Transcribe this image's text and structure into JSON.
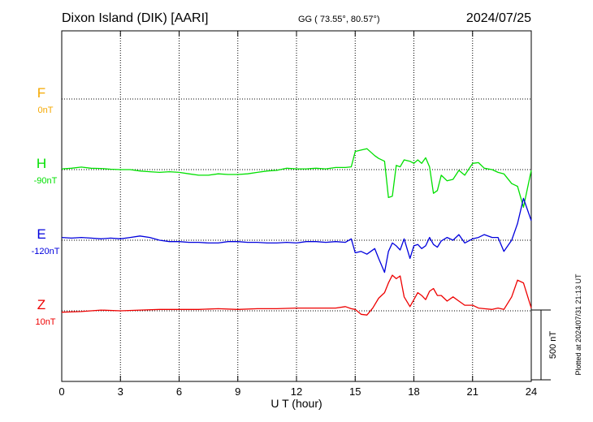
{
  "header": {
    "station": "Dixon Island (DIK)  [AARI]",
    "coords": "GG ( 73.55°,  80.57°)",
    "date": "2024/07/25"
  },
  "side_note": "Plotted at 2024/07/31 21:13 UT",
  "chart_data": {
    "type": "line",
    "xlabel": "U T (hour)",
    "xlim": [
      0,
      24
    ],
    "xticks": [
      0,
      3,
      6,
      9,
      12,
      15,
      18,
      21,
      24
    ],
    "xticklabels": [
      "0",
      "3",
      "6",
      "9",
      "12",
      "15",
      "18",
      "21",
      "24"
    ],
    "scale_bar": {
      "value": 500,
      "label": "500 nT"
    },
    "series": [
      {
        "name": "F",
        "baseline_label": "0nT",
        "color": "#f5a800",
        "x": [],
        "y": []
      },
      {
        "name": "H",
        "baseline_label": "-90nT",
        "color": "#00e000",
        "x": [
          0,
          0.5,
          1,
          1.5,
          2,
          2.5,
          3,
          3.5,
          4,
          4.5,
          5,
          5.5,
          6,
          6.5,
          7,
          7.5,
          8,
          8.5,
          9,
          9.5,
          10,
          10.5,
          11,
          11.5,
          12,
          12.5,
          13,
          13.5,
          14,
          14.5,
          14.8,
          15,
          15.3,
          15.6,
          16,
          16.2,
          16.5,
          16.7,
          16.9,
          17.1,
          17.3,
          17.5,
          17.8,
          18.0,
          18.2,
          18.4,
          18.6,
          18.8,
          19.0,
          19.2,
          19.4,
          19.7,
          20.0,
          20.3,
          20.6,
          21.0,
          21.3,
          21.6,
          22.0,
          22.3,
          22.6,
          23.0,
          23.3,
          23.6,
          24.0
        ],
        "y": [
          5,
          10,
          18,
          10,
          8,
          3,
          0,
          0,
          -10,
          -15,
          -20,
          -15,
          -20,
          -30,
          -40,
          -40,
          -30,
          -35,
          -35,
          -30,
          -20,
          -10,
          -5,
          10,
          5,
          5,
          10,
          5,
          15,
          15,
          20,
          130,
          140,
          150,
          100,
          80,
          60,
          -200,
          -190,
          30,
          20,
          70,
          60,
          45,
          70,
          45,
          85,
          20,
          -170,
          -150,
          -40,
          -80,
          -70,
          -5,
          -40,
          45,
          50,
          10,
          0,
          -20,
          -30,
          -100,
          -120,
          -270,
          -5
        ]
      },
      {
        "name": "E",
        "baseline_label": "-120nT",
        "color": "#0000dd",
        "x": [
          0,
          0.5,
          1,
          1.5,
          2,
          2.5,
          3,
          3.5,
          4,
          4.5,
          5,
          5.5,
          6,
          6.5,
          7,
          7.5,
          8,
          8.5,
          9,
          9.5,
          10,
          10.5,
          11,
          11.5,
          12,
          12.5,
          13,
          13.5,
          14,
          14.5,
          14.8,
          15,
          15.3,
          15.6,
          16,
          16.2,
          16.5,
          16.7,
          16.9,
          17.1,
          17.3,
          17.5,
          17.8,
          18.0,
          18.2,
          18.4,
          18.6,
          18.8,
          19.0,
          19.2,
          19.4,
          19.7,
          20.0,
          20.3,
          20.6,
          21.0,
          21.3,
          21.6,
          22.0,
          22.3,
          22.6,
          23.0,
          23.3,
          23.6,
          24.0
        ],
        "y": [
          20,
          15,
          20,
          15,
          10,
          15,
          10,
          20,
          30,
          20,
          0,
          -10,
          -10,
          -15,
          -15,
          -20,
          -20,
          -10,
          -10,
          -15,
          -15,
          -20,
          -20,
          -15,
          -20,
          -10,
          -10,
          -15,
          -10,
          -15,
          10,
          -90,
          -80,
          -100,
          -60,
          -130,
          -230,
          -80,
          -20,
          -40,
          -70,
          10,
          -130,
          -40,
          -30,
          -60,
          -40,
          20,
          -30,
          -50,
          -5,
          20,
          0,
          40,
          -20,
          10,
          20,
          40,
          20,
          20,
          -80,
          0,
          120,
          300,
          140
        ]
      },
      {
        "name": "Z",
        "baseline_label": "10nT",
        "color": "#ee0000",
        "x": [
          0,
          1,
          2,
          3,
          4,
          5,
          6,
          7,
          8,
          9,
          10,
          11,
          12,
          13,
          14,
          14.5,
          14.8,
          15,
          15.3,
          15.6,
          15.9,
          16.2,
          16.5,
          16.7,
          16.9,
          17.1,
          17.3,
          17.5,
          17.8,
          18.0,
          18.2,
          18.4,
          18.6,
          18.8,
          19.0,
          19.2,
          19.4,
          19.7,
          20.0,
          20.3,
          20.6,
          21.0,
          21.3,
          21.6,
          22.0,
          22.3,
          22.6,
          23.0,
          23.3,
          23.6,
          24.0
        ],
        "y": [
          -10,
          -5,
          5,
          0,
          5,
          10,
          10,
          10,
          15,
          10,
          15,
          15,
          20,
          20,
          20,
          30,
          15,
          10,
          -25,
          -30,
          20,
          90,
          130,
          200,
          255,
          230,
          250,
          100,
          30,
          80,
          130,
          110,
          80,
          140,
          160,
          110,
          110,
          70,
          100,
          70,
          40,
          40,
          20,
          15,
          10,
          20,
          10,
          100,
          220,
          200,
          20
        ]
      }
    ]
  }
}
